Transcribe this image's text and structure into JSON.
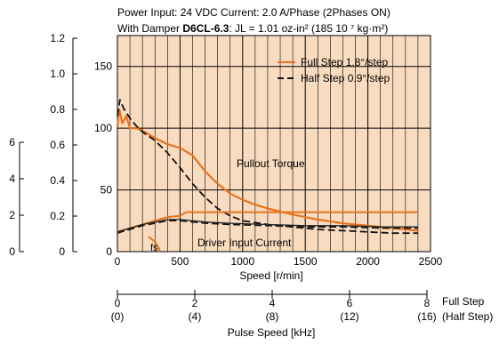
{
  "header": {
    "line1": "Power Input: 24 VDC    Current: 2.0 A/Phase (2Phases ON)",
    "line2_prefix": "With Damper ",
    "line2_bold": "D6CL-6.3",
    "line2_rest": ": JL = 1.01 oz-in² (185     10  ⁷ kg·m²)"
  },
  "colors": {
    "plot_bg": "#f9dcc0",
    "full_step": "#e8731e",
    "half_step": "#111111",
    "current": "#222222",
    "grid": "#000000"
  },
  "axes": {
    "x_label": "Speed [r/min]",
    "x_ticks": [
      "0",
      "500",
      "1000",
      "1500",
      "2000",
      "2500"
    ],
    "y_inner_ticks": [
      "0",
      "50",
      "100",
      "150"
    ],
    "y_left_ticks": [
      "0",
      "0.2",
      "0.4",
      "0.6",
      "0.8",
      "1.0",
      "1.2"
    ],
    "y_far_ticks": [
      "0",
      "2",
      "4",
      "6"
    ],
    "pulse_full_ticks": [
      "0",
      "2",
      "4",
      "6",
      "8"
    ],
    "pulse_half_ticks": [
      "(0)",
      "(4)",
      "(8)",
      "(12)",
      "(16)"
    ],
    "pulse_full_label": "Full Step",
    "pulse_half_label": "(Half Step)",
    "pulse_axis_label": "Pulse Speed [kHz]"
  },
  "annotations": {
    "pullout": "Pullout Torque",
    "current": "Driver Input Current",
    "fs": "fs"
  },
  "chart_data": {
    "type": "line",
    "title": "",
    "xlabel": "Speed [r/min]",
    "ylabel": "",
    "xlim": [
      0,
      2500
    ],
    "ylim": [
      0,
      175
    ],
    "legend": "top-right",
    "grid": true,
    "series": [
      {
        "name": "Full Step 1.8°/step",
        "group": "torque",
        "x": [
          0,
          15,
          40,
          70,
          100,
          150,
          200,
          300,
          400,
          500,
          600,
          700,
          800,
          900,
          1000,
          1100,
          1200,
          1400,
          1600,
          1800,
          2000,
          2200,
          2400
        ],
        "y": [
          101,
          115,
          104,
          110,
          100,
          100,
          98,
          92,
          87,
          84,
          78,
          65,
          55,
          47,
          42,
          38,
          35,
          30,
          26,
          23,
          21,
          19,
          17
        ]
      },
      {
        "name": "Half Step 0.9°/step",
        "group": "torque",
        "x": [
          0,
          20,
          50,
          100,
          150,
          200,
          300,
          400,
          500,
          600,
          700,
          800,
          900,
          1000,
          1200,
          1400,
          1600,
          1800,
          2000,
          2200,
          2400
        ],
        "y": [
          110,
          123,
          116,
          108,
          102,
          97,
          90,
          80,
          68,
          55,
          44,
          35,
          29,
          25,
          22,
          20,
          18,
          17,
          16,
          15,
          15
        ]
      },
      {
        "name": "",
        "group": "current_full",
        "x": [
          0,
          100,
          200,
          300,
          400,
          500,
          550,
          600,
          800,
          1000,
          1500,
          2000,
          2400
        ],
        "y": [
          16,
          19,
          22,
          25,
          28,
          29,
          32,
          32,
          32,
          32,
          32,
          32,
          32
        ]
      },
      {
        "name": "",
        "group": "current_half",
        "x": [
          0,
          100,
          200,
          300,
          400,
          500,
          600,
          700,
          900,
          1200,
          1500,
          1800,
          2100,
          2400
        ],
        "y": [
          16,
          19,
          22,
          24,
          26,
          26,
          25,
          24,
          23,
          22,
          21,
          21,
          20,
          20
        ]
      },
      {
        "name": "",
        "group": "fs",
        "x": [
          250,
          300,
          330,
          340
        ],
        "y": [
          12,
          8,
          3,
          0
        ]
      }
    ]
  }
}
